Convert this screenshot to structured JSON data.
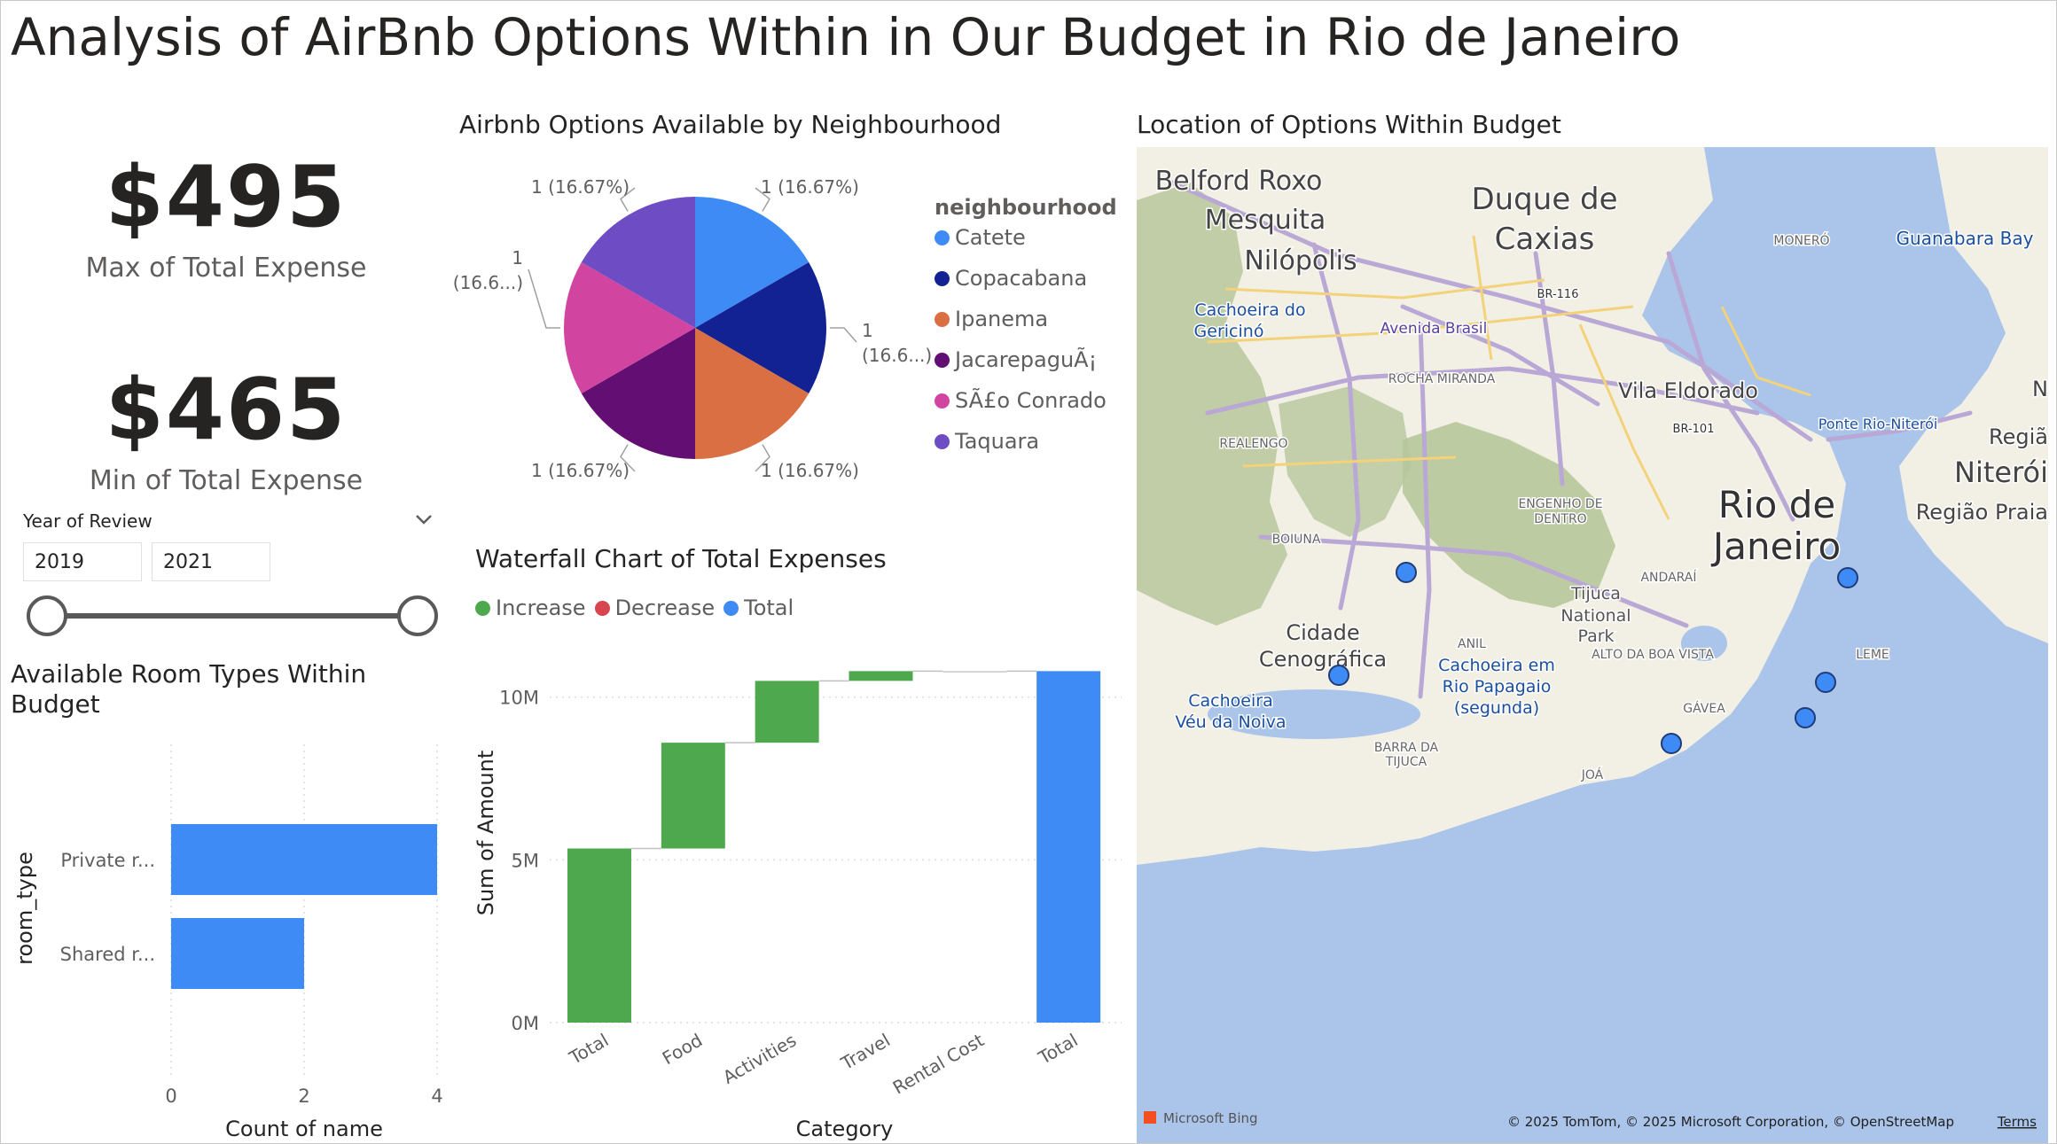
{
  "page": {
    "title": "Analysis of AirBnb Options Within in Our Budget in Rio de Janeiro"
  },
  "kpis": {
    "max": {
      "value": "$495",
      "label": "Max of Total Expense"
    },
    "min": {
      "value": "$465",
      "label": "Min of Total Expense"
    }
  },
  "slicer": {
    "title": "Year of Review",
    "start_value": "2019",
    "end_value": "2021",
    "chevron_icon": "chevron-down-icon"
  },
  "room_chart": {
    "title": "Available Room Types Within Budget",
    "title_lines": [
      "Available Room Types Within",
      "Budget"
    ]
  },
  "pie_chart": {
    "title": "Airbnb Options Available by Neighbourhood",
    "legend_title": "neighbourhood"
  },
  "waterfall_chart": {
    "title": "Waterfall Chart of Total Expenses",
    "legend": [
      {
        "label": "Increase",
        "color": "#4ea84e"
      },
      {
        "label": "Decrease",
        "color": "#d64550"
      },
      {
        "label": "Total",
        "color": "#3f8bf5"
      }
    ]
  },
  "map": {
    "title": "Location of Options Within Budget",
    "labels": [
      "Belford Roxo",
      "Mesquita",
      "Nilópolis",
      "Duque de",
      "Caxias",
      "Guanabara Bay",
      "MONERÓ",
      "Cachoeira do",
      "Gericinó",
      "Avenida Brasil",
      "BR-116",
      "ROCHA MIRANDA",
      "Vila Eldorado",
      "BR-101",
      "Ponte Rio-Niterói",
      "Regiã",
      "Niterói",
      "Região Praia",
      "N",
      "REALENGO",
      "ENGENHO DE",
      "DENTRO",
      "BOIUNA",
      "Rio de",
      "Janeiro",
      "ANDARAÍ",
      "Tijuca",
      "National",
      "Park",
      "ALTO DA BOA VISTA",
      "LEME",
      "Cidade",
      "Cenográfica",
      "ANIL",
      "Cachoeira em",
      "Rio Papagaio",
      "(segunda)",
      "Cachoeira",
      "Véu da Noiva",
      "GÁVEA",
      "BARRA DA",
      "TIJUCA",
      "JOÁ"
    ],
    "attribution": "© 2025 TomTom, © 2025 Microsoft Corporation, © OpenStreetMap",
    "terms": "Terms",
    "logo": "Microsoft Bing",
    "colors": {
      "water": "#aac4ea",
      "land": "#f2efe4",
      "forest": "#b7c79b",
      "marker": "#3f8bf5"
    }
  },
  "chart_data": [
    {
      "type": "bar",
      "orientation": "horizontal",
      "title": "Available Room Types Within Budget",
      "categories": [
        "Private r...",
        "Shared r..."
      ],
      "values": [
        4,
        2
      ],
      "xlabel": "Count of name",
      "ylabel": "room_type",
      "xlim": [
        0,
        4
      ],
      "x_ticks": [
        "0",
        "2",
        "4"
      ],
      "grid": true,
      "color": "#3f8bf5"
    },
    {
      "type": "pie",
      "title": "Airbnb Options Available by Neighbourhood",
      "legend_title": "neighbourhood",
      "legend_position": "right",
      "slices": [
        {
          "name": "Catete",
          "value": 1,
          "label": "1 (16.67%)",
          "color": "#3f8bf5"
        },
        {
          "name": "Copacabana",
          "value": 1,
          "label": "1\n(16.6...)",
          "color": "#132293"
        },
        {
          "name": "Ipanema",
          "value": 1,
          "label": "1 (16.67%)",
          "color": "#d96f42"
        },
        {
          "name": "JacarepaguÃ¡",
          "value": 1,
          "label": "1 (16.67%)",
          "color": "#620e73"
        },
        {
          "name": "SÃ£o Conrado",
          "value": 1,
          "label": "1\n(16.6...)",
          "color": "#d145a0"
        },
        {
          "name": "Taquara",
          "value": 1,
          "label": "1 (16.67%)",
          "color": "#6e4cc4"
        }
      ]
    },
    {
      "type": "bar",
      "subtype": "waterfall",
      "title": "Waterfall Chart of Total Expenses",
      "categories": [
        "Total",
        "Food",
        "Activities",
        "Travel",
        "Rental Cost",
        "Total"
      ],
      "segments": [
        {
          "kind": "increase",
          "start": 0,
          "end": 5.35
        },
        {
          "kind": "increase",
          "start": 5.35,
          "end": 8.6
        },
        {
          "kind": "increase",
          "start": 8.6,
          "end": 10.5
        },
        {
          "kind": "increase",
          "start": 10.5,
          "end": 10.8
        },
        {
          "kind": "increase",
          "start": 10.8,
          "end": 10.8
        },
        {
          "kind": "total",
          "start": 0,
          "end": 10.8
        }
      ],
      "units": "M",
      "xlabel": "Category",
      "ylabel": "Sum of Amount",
      "ylim": [
        0,
        11
      ],
      "y_ticks": [
        {
          "value": 0,
          "label": "0M"
        },
        {
          "value": 5,
          "label": "5M"
        },
        {
          "value": 10,
          "label": "10M"
        }
      ],
      "grid": true,
      "legend_position": "top-left"
    }
  ]
}
